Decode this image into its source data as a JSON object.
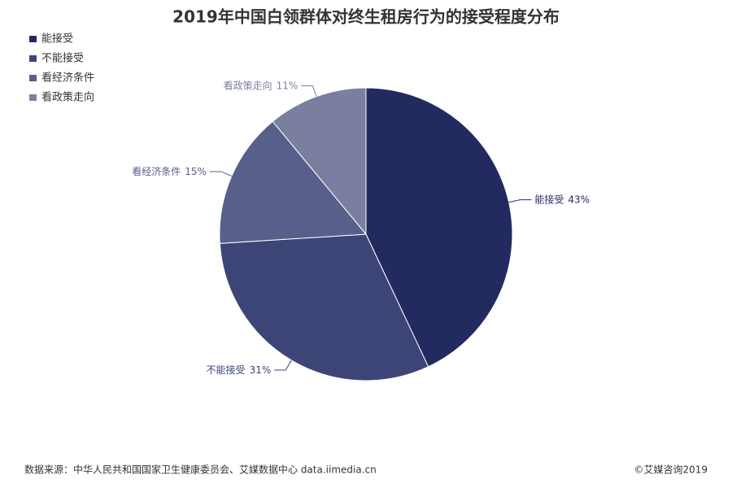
{
  "chart_data": {
    "type": "pie",
    "title": "2019年中国白领群体对终生租房行为的接受程度分布",
    "categories": [
      "能接受",
      "不能接受",
      "看经济条件",
      "看政策走向"
    ],
    "values": [
      43,
      31,
      15,
      11
    ],
    "value_labels": [
      "43%",
      "31%",
      "15%",
      "11%"
    ],
    "colors": [
      "#232a60",
      "#3d4577",
      "#575f8a",
      "#7a7fa0"
    ],
    "legend": "top-left",
    "source": "数据来源：中华人民共和国国家卫生健康委员会、艾媒数据中心 data.iimedia.cn",
    "copyright": "©艾媒咨询2019"
  }
}
